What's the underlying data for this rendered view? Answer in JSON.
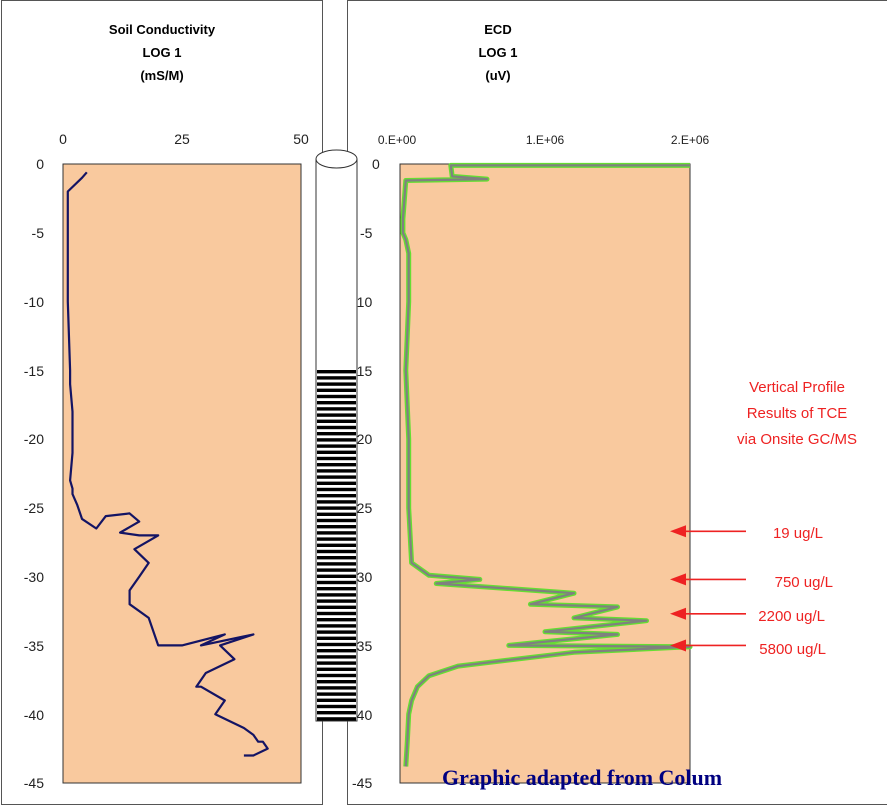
{
  "chart_data": [
    {
      "type": "line",
      "title": [
        "Soil Conductivity",
        "LOG 1",
        "(mS/M)"
      ],
      "x_ticks": [
        "0",
        "25",
        "50"
      ],
      "xlim": [
        0,
        50
      ],
      "y_ticks": [
        "0",
        "-5",
        "-10",
        "-15",
        "-20",
        "-25",
        "-30",
        "-35",
        "-40",
        "-45"
      ],
      "ylim": [
        -45,
        0
      ],
      "series": [
        {
          "color": "#141464",
          "x": [
            5,
            4,
            1,
            1,
            1,
            1.5,
            1.5,
            2,
            2,
            1.5,
            2,
            2,
            3,
            4,
            7,
            9,
            14,
            16,
            12,
            16,
            20,
            15,
            18,
            16,
            14,
            14,
            18,
            20,
            25,
            34,
            29,
            40,
            33,
            36,
            30,
            28,
            29,
            34,
            32,
            35,
            38,
            40,
            41,
            42,
            43,
            40,
            38
          ],
          "y": [
            -0.6,
            -1,
            -2,
            -5,
            -10,
            -15,
            -16,
            -18,
            -21,
            -23,
            -23.6,
            -24,
            -24.8,
            -25.8,
            -26.5,
            -25.6,
            -25.4,
            -26,
            -26.8,
            -27,
            -27,
            -28,
            -29,
            -30,
            -31,
            -32,
            -33,
            -35,
            -35,
            -34.2,
            -35,
            -34.2,
            -35,
            -36,
            -37,
            -38,
            -38,
            -39,
            -40,
            -40.5,
            -41,
            -41.5,
            -42,
            -42,
            -42.5,
            -43,
            -43
          ]
        }
      ]
    },
    {
      "type": "line",
      "title": [
        "ECD",
        "LOG 1",
        "(uV)"
      ],
      "x_ticks": [
        "0.E+00",
        "1.E+06",
        "2.E+06"
      ],
      "xlim": [
        0,
        2000000
      ],
      "y_ticks": [
        "0",
        "-5",
        "-10",
        "-15",
        "-20",
        "-25",
        "-30",
        "-35",
        "-40",
        "-45"
      ],
      "ylim": [
        -45,
        0
      ],
      "series": [
        {
          "color": "#808080",
          "x": [
            2000000,
            350000,
            360000,
            600000,
            40000,
            20000,
            20000,
            40000,
            60000,
            60000,
            40000,
            60000,
            60000,
            80000,
            200000,
            550000,
            250000,
            1200000,
            900000,
            1500000,
            1200000,
            1700000,
            1000000,
            1500000,
            750000,
            2000000,
            1200000,
            400000,
            200000,
            120000,
            80000,
            60000,
            50000,
            40000
          ],
          "y": [
            -0.1,
            -0.1,
            -0.9,
            -1.1,
            -1.2,
            -4,
            -5,
            -5.5,
            -6.5,
            -10,
            -15,
            -20,
            -25,
            -29,
            -29.9,
            -30.2,
            -30.5,
            -31.2,
            -32,
            -32.2,
            -33,
            -33.2,
            -34,
            -34.2,
            -35,
            -35.1,
            -35.5,
            -36.5,
            -37.2,
            -38,
            -39,
            -40,
            -42,
            -43.8
          ]
        }
      ]
    }
  ],
  "annotation": {
    "title_lines": [
      "Vertical Profile",
      "Results of TCE",
      "via Onsite GC/MS"
    ],
    "labels": [
      {
        "text": "19 ug/L",
        "depth": -26.7
      },
      {
        "text": "750 ug/L",
        "depth": -30.2
      },
      {
        "text": "2200 ug/L",
        "depth": -32.7
      },
      {
        "text": "5800 ug/L",
        "depth": -35
      }
    ],
    "color": "#ee2222"
  },
  "caption": "Graphic adapted from Colum",
  "colors": {
    "plot_fill": "#f9c99e",
    "soil_line": "#141464",
    "ecd_line_outer": "#66dd33",
    "ecd_line_inner": "#808080",
    "annotation": "#ee2222",
    "caption": "#000080"
  }
}
